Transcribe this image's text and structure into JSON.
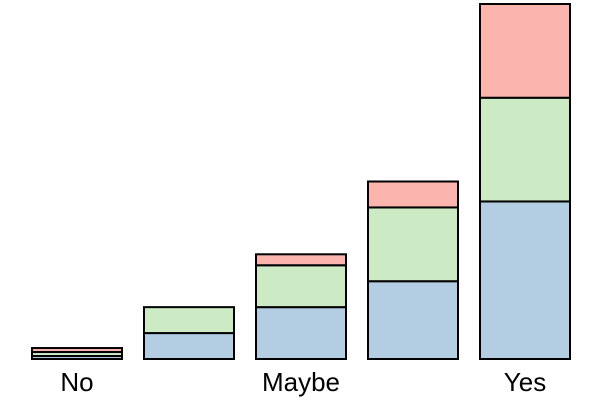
{
  "chart_data": {
    "type": "bar",
    "stacked": true,
    "orientation": "vertical",
    "categories": [
      "No",
      "",
      "Maybe",
      "",
      "Yes"
    ],
    "series": [
      {
        "values": [
          3,
          26,
          52,
          78,
          158
        ]
      },
      {
        "values": [
          4,
          26,
          42,
          74,
          104
        ]
      },
      {
        "values": [
          4,
          0,
          11,
          26,
          94
        ]
      }
    ],
    "ylim": [
      0,
      356
    ],
    "grid": false,
    "legend": "none",
    "title": "",
    "xlabel": "",
    "ylabel": "",
    "colors": {
      "series": [
        "#b3cde3",
        "#ccebc5",
        "#fbb4ae"
      ],
      "edge": "#000000"
    }
  }
}
